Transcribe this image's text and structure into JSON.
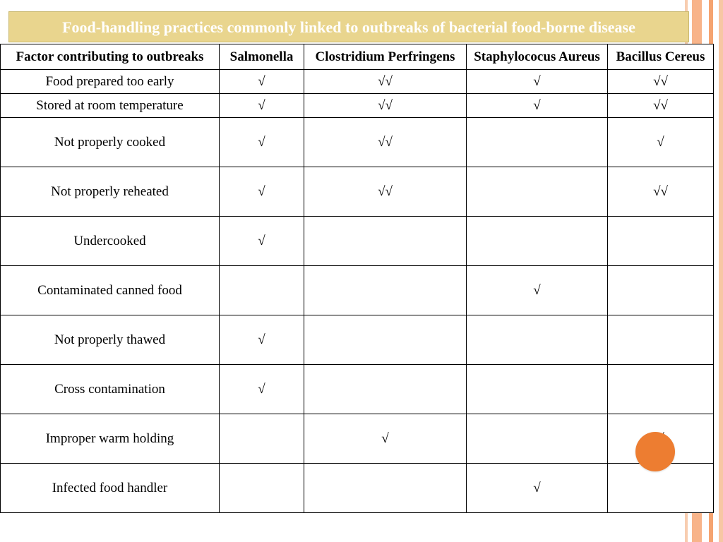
{
  "title": "Food-handling practices commonly linked to outbreaks of bacterial food-borne disease",
  "columns": {
    "factor": "Factor contributing to outbreaks",
    "c1": "Salmonella",
    "c2": "Clostridium Perfringens",
    "c3": "Staphylococus Aureus",
    "c4": "Bacillus Cereus"
  },
  "marks": {
    "single": "√",
    "double": "√√",
    "none": ""
  },
  "rows": [
    {
      "factor": "Food prepared too early",
      "c1": "√",
      "c2": "√√",
      "c3": "√",
      "c4": "√√",
      "h": "short"
    },
    {
      "factor": "Stored at room temperature",
      "c1": "√",
      "c2": "√√",
      "c3": "√",
      "c4": "√√",
      "h": "short"
    },
    {
      "factor": "Not properly cooked",
      "c1": "√",
      "c2": "√√",
      "c3": "",
      "c4": "√",
      "h": "tall"
    },
    {
      "factor": "Not properly reheated",
      "c1": "√",
      "c2": "√√",
      "c3": "",
      "c4": "√√",
      "h": "tall"
    },
    {
      "factor": "Undercooked",
      "c1": "√",
      "c2": "",
      "c3": "",
      "c4": "",
      "h": "tall"
    },
    {
      "factor": "Contaminated canned food",
      "c1": "",
      "c2": "",
      "c3": "√",
      "c4": "",
      "h": "tall"
    },
    {
      "factor": "Not properly thawed",
      "c1": "√",
      "c2": "",
      "c3": "",
      "c4": "",
      "h": "tall"
    },
    {
      "factor": "Cross contamination",
      "c1": "√",
      "c2": "",
      "c3": "",
      "c4": "",
      "h": "tall"
    },
    {
      "factor": "Improper warm holding",
      "c1": "",
      "c2": "√",
      "c3": "",
      "c4": "√",
      "h": "tall"
    },
    {
      "factor": "Infected food handler",
      "c1": "",
      "c2": "",
      "c3": "√",
      "c4": "",
      "h": "tall"
    }
  ],
  "colors": {
    "title_bg": "#e9d58e",
    "title_text": "#ffffff",
    "cell_border": "#000000",
    "circle": "#ed7d31",
    "stripes": [
      "#f7c7a3",
      "#f5a470",
      "#f8b48a",
      "#f8cdb0"
    ]
  },
  "fonts": {
    "title_size_pt": 22,
    "cell_size_pt": 19
  }
}
